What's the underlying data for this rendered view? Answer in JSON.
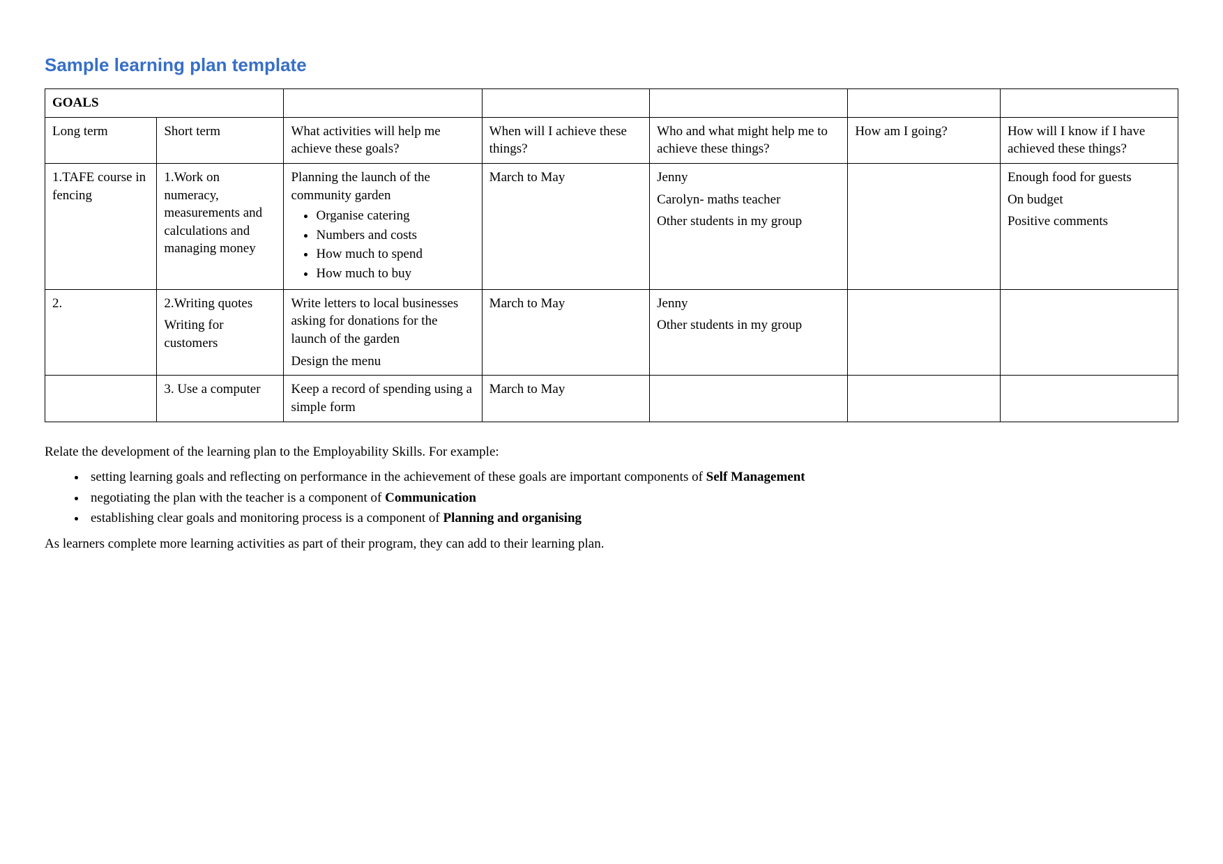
{
  "title": "Sample learning plan template",
  "headers": {
    "goals": "GOALS",
    "long_term": "Long term",
    "short_term": "Short term",
    "activities": "What activities will help me achieve these goals?",
    "when": "When will I achieve these things?",
    "who": "Who and what might help me to achieve these things?",
    "how_going": "How am I going?",
    "how_know": "How will I know if I have achieved these things?"
  },
  "rows": {
    "r1": {
      "long_term": "1.TAFE course in fencing",
      "short_term": "1.Work on numeracy, measurements and calculations and managing money",
      "activities_intro": "Planning the launch of the community garden",
      "activities_items": {
        "a": "Organise catering",
        "b": "Numbers and costs",
        "c": "How much to spend",
        "d": "How much to buy"
      },
      "when": "March to May",
      "who": {
        "a": "Jenny",
        "b": "Carolyn- maths teacher",
        "c": "Other students in my group"
      },
      "how_going": "",
      "how_know": {
        "a": "Enough food for guests",
        "b": "On budget",
        "c": "Positive comments"
      }
    },
    "r2": {
      "long_term": "2.",
      "short_term": {
        "a": "2.Writing quotes",
        "b": "Writing for customers"
      },
      "activities": {
        "a": "Write letters to local businesses asking for donations for the launch of the garden",
        "b": "Design the menu"
      },
      "when": "March to May",
      "who": {
        "a": "Jenny",
        "b": "Other students in my group"
      },
      "how_going": "",
      "how_know": ""
    },
    "r3": {
      "long_term": "",
      "short_term": "3. Use a computer",
      "activities": "Keep a record of spending using a simple form",
      "when": "March to May",
      "who": "",
      "how_going": "",
      "how_know": ""
    }
  },
  "footer": {
    "intro": "Relate the development of the learning plan to the Employability Skills. For example:",
    "items": {
      "a_pre": "setting learning goals and reflecting on performance in the achievement of these goals are important components of ",
      "a_bold": "Self Management",
      "b_pre": "negotiating the plan with the teacher is a component of ",
      "b_bold": "Communication",
      "c_pre": "establishing clear goals and monitoring process is a component of ",
      "c_bold": "Planning and organising"
    },
    "outro": "As learners complete more learning activities as part of their program, they can add to their learning plan."
  }
}
